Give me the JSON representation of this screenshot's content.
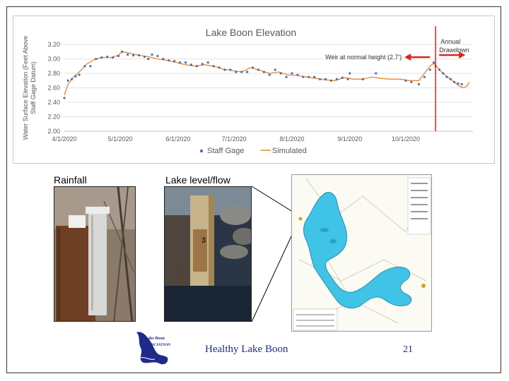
{
  "chart_data": {
    "type": "line",
    "title": "Lake Boon Elevation",
    "ylabel_line1": "Water Surface Elevation (Feet Above",
    "ylabel_line2": "Staff Gage Datum)",
    "ylim": [
      2.0,
      3.2
    ],
    "yticks": [
      "2.00",
      "2.20",
      "2.40",
      "2.60",
      "2.80",
      "3.00",
      "3.20"
    ],
    "xticks": [
      "4/1/2020",
      "5/1/2020",
      "6/1/2020",
      "7/1/2020",
      "8/1/2020",
      "9/1/2020",
      "10/1/2020"
    ],
    "grid": "horizontal",
    "legend_position": "bottom",
    "series": [
      {
        "name": "Staff Gage",
        "style": "markers",
        "color": "#4a6fb5",
        "points": [
          [
            0,
            2.46
          ],
          [
            2,
            2.7
          ],
          [
            4,
            2.72
          ],
          [
            6,
            2.76
          ],
          [
            8,
            2.78
          ],
          [
            11,
            2.9
          ],
          [
            14,
            2.9
          ],
          [
            17,
            3.0
          ],
          [
            20,
            3.02
          ],
          [
            23,
            3.03
          ],
          [
            26,
            3.02
          ],
          [
            29,
            3.04
          ],
          [
            31,
            3.1
          ],
          [
            34,
            3.06
          ],
          [
            37,
            3.05
          ],
          [
            40,
            3.05
          ],
          [
            43,
            3.03
          ],
          [
            45,
            3.0
          ],
          [
            47,
            3.06
          ],
          [
            50,
            3.04
          ],
          [
            53,
            3.0
          ],
          [
            56,
            2.98
          ],
          [
            59,
            2.97
          ],
          [
            62,
            2.95
          ],
          [
            65,
            2.95
          ],
          [
            68,
            2.92
          ],
          [
            71,
            2.9
          ],
          [
            74,
            2.93
          ],
          [
            77,
            2.95
          ],
          [
            80,
            2.9
          ],
          [
            83,
            2.88
          ],
          [
            86,
            2.85
          ],
          [
            89,
            2.85
          ],
          [
            92,
            2.82
          ],
          [
            95,
            2.82
          ],
          [
            98,
            2.82
          ],
          [
            101,
            2.88
          ],
          [
            104,
            2.85
          ],
          [
            107,
            2.82
          ],
          [
            110,
            2.78
          ],
          [
            113,
            2.85
          ],
          [
            116,
            2.8
          ],
          [
            119,
            2.75
          ],
          [
            122,
            2.8
          ],
          [
            125,
            2.78
          ],
          [
            128,
            2.75
          ],
          [
            131,
            2.75
          ],
          [
            134,
            2.75
          ],
          [
            137,
            2.72
          ],
          [
            140,
            2.72
          ],
          [
            143,
            2.7
          ],
          [
            146,
            2.72
          ],
          [
            149,
            2.74
          ],
          [
            152,
            2.72
          ],
          [
            153,
            2.8
          ],
          [
            160,
            2.72
          ],
          [
            167,
            2.8
          ],
          [
            183,
            2.7
          ],
          [
            186,
            2.68
          ],
          [
            190,
            2.65
          ],
          [
            193,
            2.75
          ],
          [
            196,
            2.85
          ],
          [
            198,
            2.95
          ],
          [
            199,
            2.9
          ],
          [
            201,
            2.85
          ],
          [
            203,
            2.8
          ],
          [
            205,
            2.75
          ],
          [
            207,
            2.72
          ],
          [
            209,
            2.68
          ],
          [
            211,
            2.66
          ],
          [
            213,
            2.65
          ]
        ]
      },
      {
        "name": "Simulated",
        "style": "line",
        "color": "#e8862a",
        "points": [
          [
            0,
            2.5
          ],
          [
            2,
            2.65
          ],
          [
            5,
            2.75
          ],
          [
            8,
            2.82
          ],
          [
            12,
            2.93
          ],
          [
            16,
            2.99
          ],
          [
            20,
            3.02
          ],
          [
            25,
            3.02
          ],
          [
            29,
            3.05
          ],
          [
            31,
            3.1
          ],
          [
            35,
            3.08
          ],
          [
            40,
            3.05
          ],
          [
            45,
            3.03
          ],
          [
            50,
            3.0
          ],
          [
            55,
            2.98
          ],
          [
            60,
            2.95
          ],
          [
            65,
            2.92
          ],
          [
            70,
            2.9
          ],
          [
            75,
            2.92
          ],
          [
            80,
            2.9
          ],
          [
            85,
            2.86
          ],
          [
            90,
            2.84
          ],
          [
            95,
            2.82
          ],
          [
            100,
            2.88
          ],
          [
            105,
            2.84
          ],
          [
            110,
            2.8
          ],
          [
            115,
            2.82
          ],
          [
            120,
            2.78
          ],
          [
            125,
            2.77
          ],
          [
            130,
            2.75
          ],
          [
            135,
            2.73
          ],
          [
            140,
            2.71
          ],
          [
            145,
            2.7
          ],
          [
            150,
            2.74
          ],
          [
            155,
            2.72
          ],
          [
            160,
            2.72
          ],
          [
            165,
            2.75
          ],
          [
            170,
            2.73
          ],
          [
            175,
            2.72
          ],
          [
            180,
            2.72
          ],
          [
            185,
            2.7
          ],
          [
            190,
            2.7
          ],
          [
            193,
            2.8
          ],
          [
            196,
            2.9
          ],
          [
            198,
            2.94
          ],
          [
            200,
            2.88
          ],
          [
            203,
            2.8
          ],
          [
            206,
            2.74
          ],
          [
            209,
            2.68
          ],
          [
            212,
            2.62
          ],
          [
            214,
            2.6
          ],
          [
            216,
            2.63
          ],
          [
            217,
            2.68
          ]
        ]
      }
    ],
    "annotations": {
      "weir": "Weir at normal height (2.7')",
      "drawdown_line1": "Annual",
      "drawdown_line2": "Drawdown"
    },
    "drawdown_day": 199
  },
  "photos": {
    "rainfall_label": "Rainfall",
    "lake_label": "Lake level/flow",
    "gage_digit": "3"
  },
  "footer": {
    "title": "Healthy Lake Boon",
    "page_number": "21",
    "logo_line1": "Lake Boon",
    "logo_line2": "ASSOCIATION"
  },
  "colors": {
    "lake_fill": "#3fc3e6",
    "annotation_red": "#d9261c",
    "footer_blue": "#1f2a8a"
  }
}
